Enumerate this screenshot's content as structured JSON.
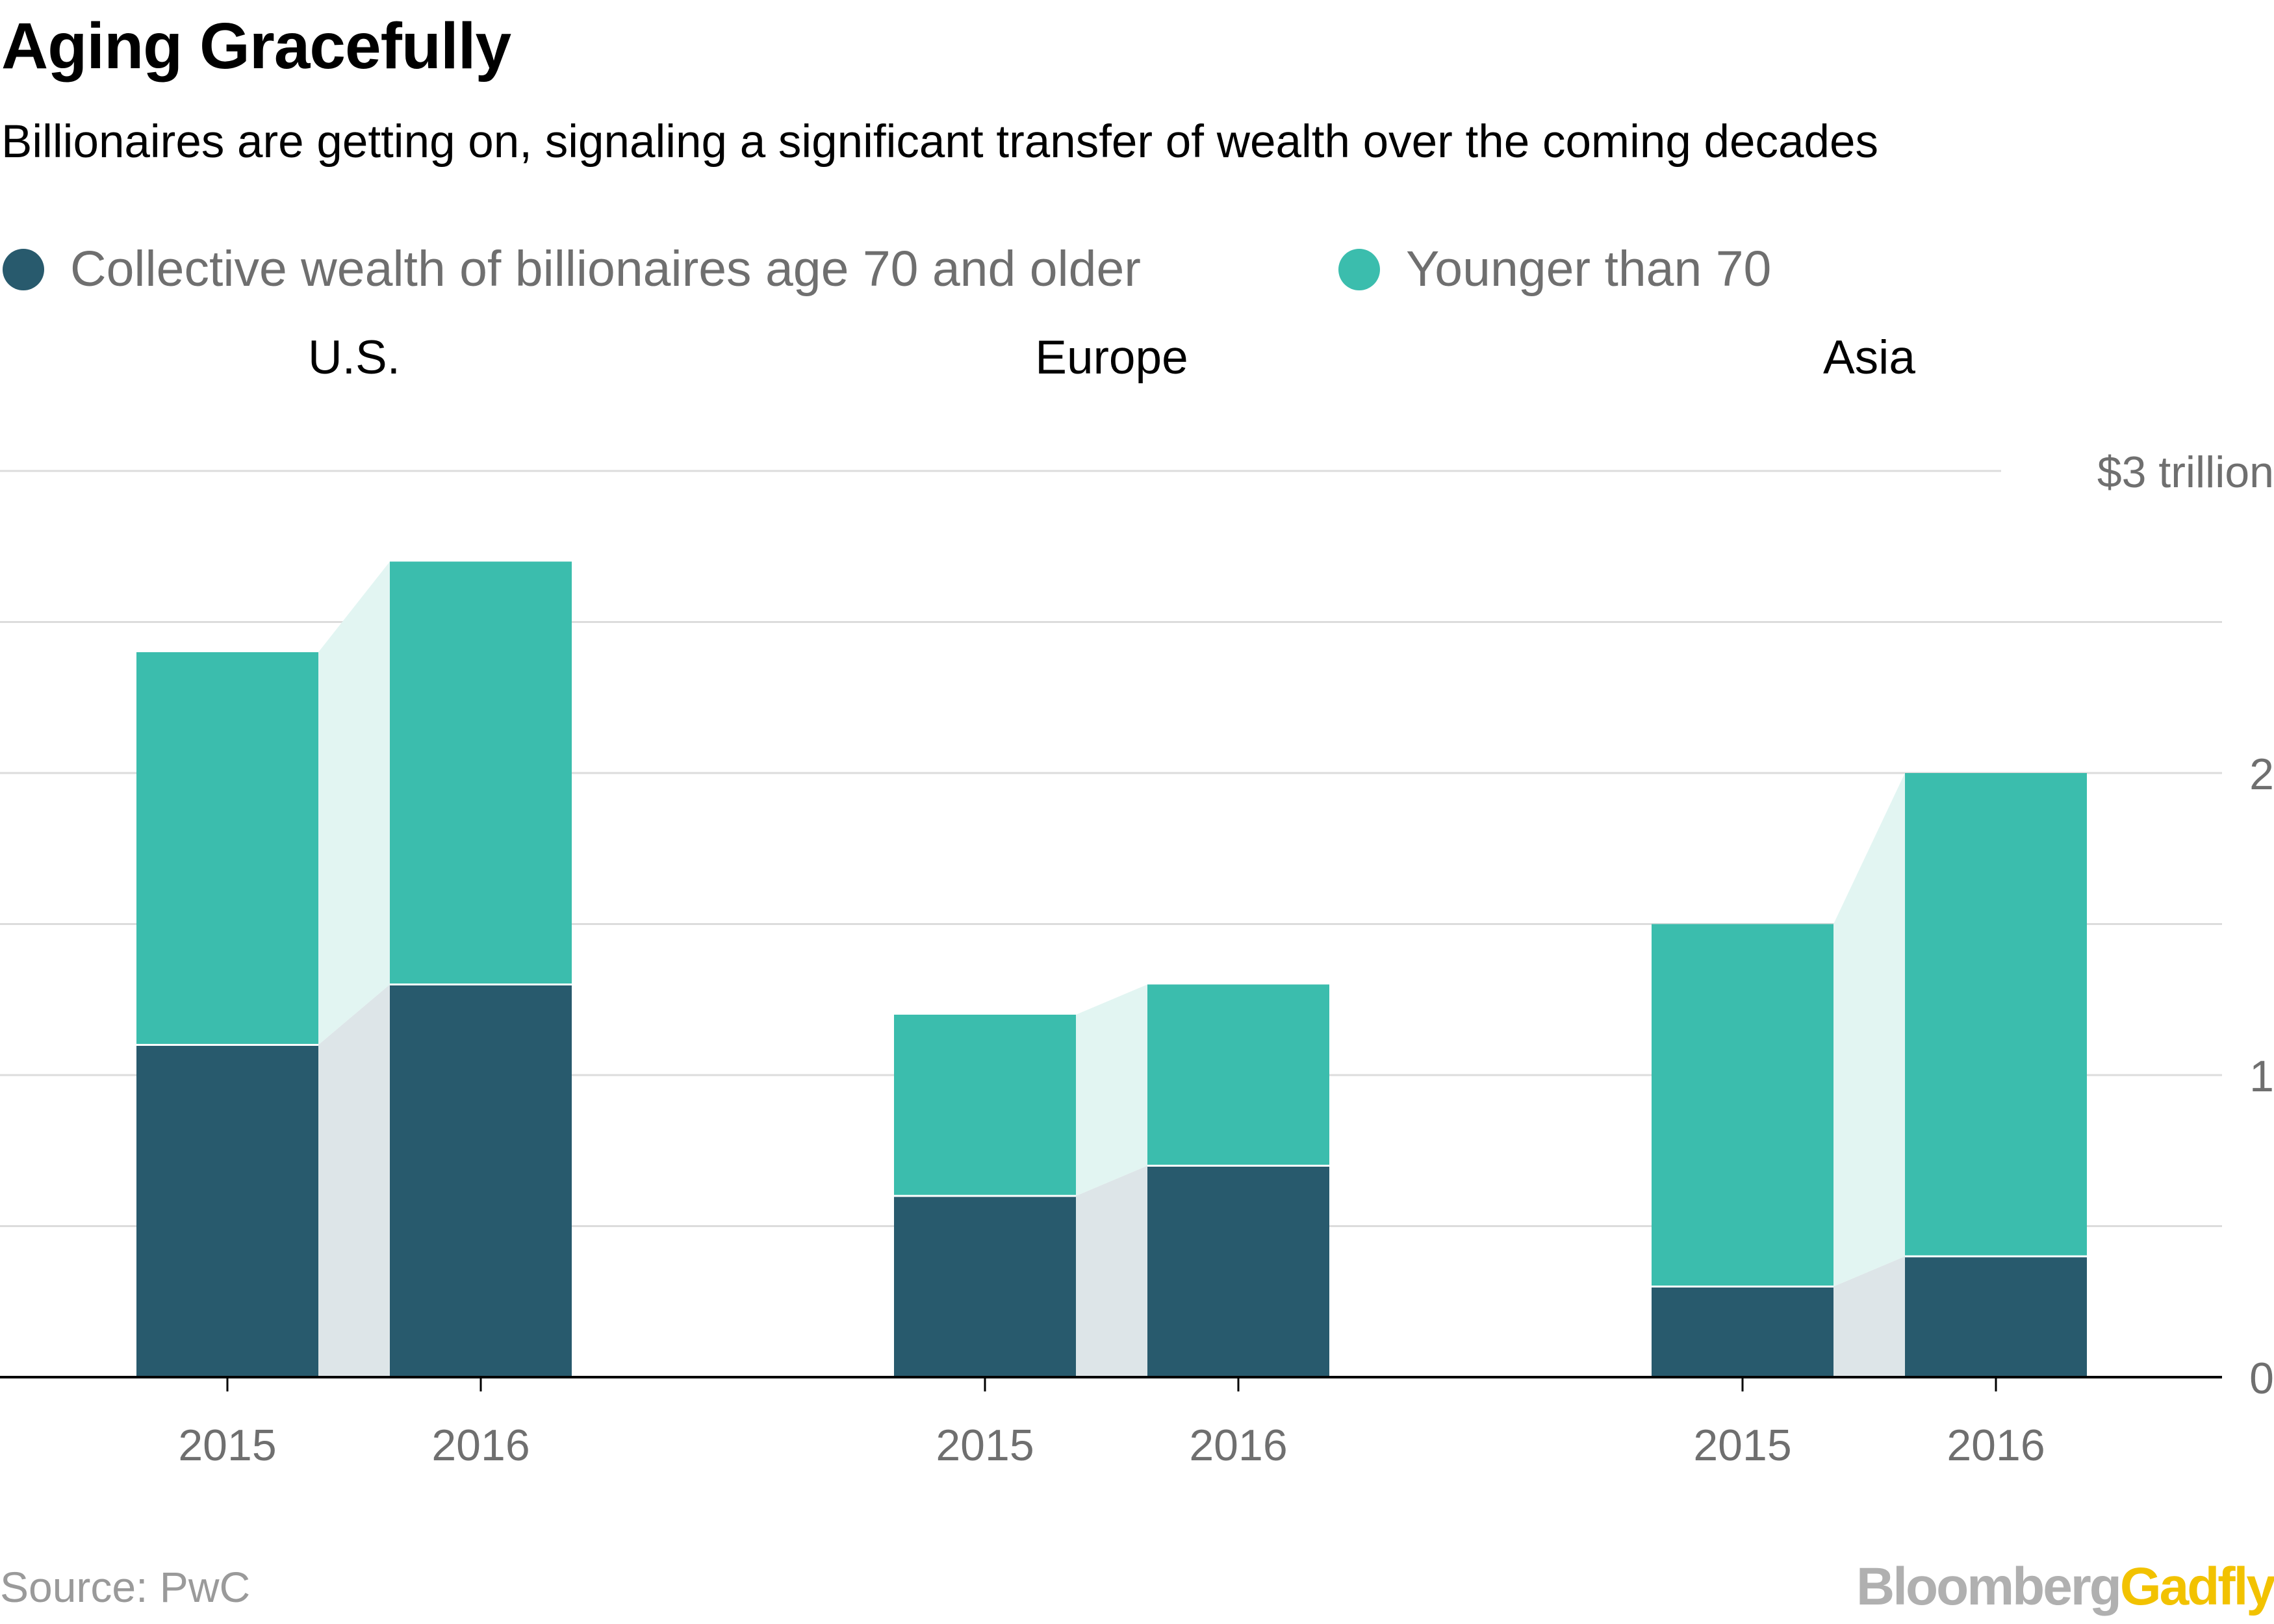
{
  "title": "Aging Gracefully",
  "subtitle": "Billionaires are getting on, signaling a significant transfer of wealth over the coming decades",
  "legend": {
    "items": [
      {
        "label": "Collective wealth of billionaires age 70 and older",
        "color": "#285a6d"
      },
      {
        "label": "Younger than 70",
        "color": "#3bbdad"
      }
    ]
  },
  "colors": {
    "older": "#285a6d",
    "younger": "#3bbdad",
    "older_connector": "#dde5e8",
    "younger_connector": "#e2f5f2",
    "grid": "#dcdcdc",
    "axis": "#000000",
    "tick_text": "#6f6f6f",
    "panel_title": "#000000"
  },
  "chart_data": {
    "type": "bar",
    "stacked": true,
    "ylim": [
      0,
      3
    ],
    "ytick_values": [
      0,
      0.5,
      1,
      1.5,
      2,
      2.5,
      3
    ],
    "ytick_labels": [
      "0",
      "",
      "1",
      "",
      "2",
      "",
      "$3 trillion"
    ],
    "grid": true,
    "legend_position": "top-left",
    "series_names": [
      "Collective wealth of billionaires age 70 and older",
      "Younger than 70"
    ],
    "panels": [
      {
        "name": "U.S.",
        "categories": [
          "2015",
          "2016"
        ],
        "series": [
          {
            "name": "Collective wealth of billionaires age 70 and older",
            "values": [
              1.1,
              1.3
            ]
          },
          {
            "name": "Younger than 70",
            "values": [
              1.3,
              1.4
            ]
          }
        ]
      },
      {
        "name": "Europe",
        "categories": [
          "2015",
          "2016"
        ],
        "series": [
          {
            "name": "Collective wealth of billionaires age 70 and older",
            "values": [
              0.6,
              0.7
            ]
          },
          {
            "name": "Younger than 70",
            "values": [
              0.6,
              0.6
            ]
          }
        ]
      },
      {
        "name": "Asia",
        "categories": [
          "2015",
          "2016"
        ],
        "series": [
          {
            "name": "Collective wealth of billionaires age 70 and older",
            "values": [
              0.3,
              0.4
            ]
          },
          {
            "name": "Younger than 70",
            "values": [
              1.2,
              1.6
            ]
          }
        ]
      }
    ]
  },
  "footer": {
    "source": "Source: PwC",
    "brand_part1": "Bloomberg",
    "brand_part2": "Gadfly"
  }
}
